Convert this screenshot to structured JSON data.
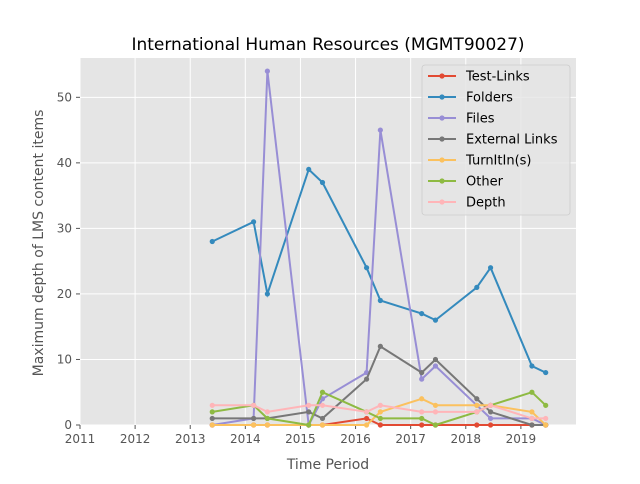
{
  "chart_data": {
    "type": "line",
    "title": "International Human Resources (MGMT90027)",
    "xlabel": "Time Period",
    "ylabel": "Maximum depth of LMS content items",
    "xlim": [
      2011,
      2020
    ],
    "ylim": [
      0,
      56
    ],
    "xticks": [
      2011,
      2012,
      2013,
      2014,
      2015,
      2016,
      2017,
      2018,
      2019
    ],
    "yticks": [
      0,
      10,
      20,
      30,
      40,
      50
    ],
    "grid": true,
    "legend_position": "top-right",
    "x": [
      2013.4,
      2014.15,
      2014.4,
      2015.15,
      2015.4,
      2016.2,
      2016.45,
      2017.2,
      2017.45,
      2018.2,
      2018.45,
      2019.2,
      2019.45
    ],
    "series": [
      {
        "name": "Test-Links",
        "color": "#E24A33",
        "values": [
          0,
          0,
          0,
          0,
          0,
          1,
          0,
          0,
          0,
          0,
          0,
          0,
          0
        ]
      },
      {
        "name": "Folders",
        "color": "#348ABD",
        "values": [
          28,
          31,
          20,
          39,
          37,
          24,
          19,
          17,
          16,
          21,
          24,
          9,
          8
        ]
      },
      {
        "name": "Files",
        "color": "#988ED5",
        "values": [
          0,
          1,
          54,
          0,
          4,
          8,
          45,
          7,
          9,
          3,
          1,
          1,
          0
        ]
      },
      {
        "name": "External Links",
        "color": "#777777",
        "values": [
          1,
          1,
          1,
          2,
          1,
          7,
          12,
          8,
          10,
          4,
          2,
          0,
          0
        ]
      },
      {
        "name": "TurnItIn(s)",
        "color": "#FBC15E",
        "values": [
          0,
          0,
          0,
          0,
          0,
          0,
          2,
          4,
          3,
          3,
          3,
          2,
          0
        ]
      },
      {
        "name": "Other",
        "color": "#8EBA42",
        "values": [
          2,
          3,
          1,
          0,
          5,
          2,
          1,
          1,
          0,
          2,
          3,
          5,
          3
        ]
      },
      {
        "name": "Depth",
        "color": "#FFB5B8",
        "values": [
          3,
          3,
          2,
          3,
          3,
          2,
          3,
          2,
          2,
          2,
          3,
          1,
          1
        ]
      }
    ]
  }
}
